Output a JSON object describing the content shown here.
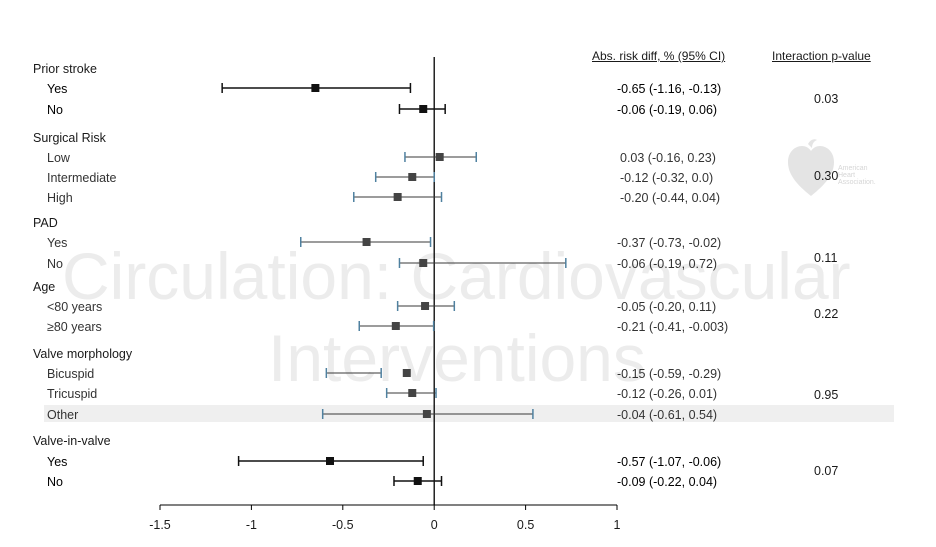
{
  "headers": {
    "abs_risk": "Abs. risk diff, % (95% CI)",
    "interaction": "Interaction p-value"
  },
  "watermark": {
    "line1": "Circulation: Cardiovascular",
    "line2": "Interventions",
    "logo_text": [
      "American",
      "Heart",
      "Association."
    ]
  },
  "colors": {
    "dark_marker": "#111111",
    "gray_marker": "#444444",
    "ci_dark": "#111111",
    "ci_blue": "#4f81a0",
    "highlight_band": "#efefef"
  },
  "chart_data": {
    "type": "forest",
    "xlim": [
      -1.5,
      1
    ],
    "xticks": [
      "-1.5",
      "-1",
      "-0.5",
      "0",
      "0.5",
      "1"
    ],
    "groups": [
      {
        "label": "Prior stroke",
        "p_value": "0.03",
        "rows": [
          {
            "label": "Yes",
            "est": -0.65,
            "lo": -1.16,
            "hi": -0.13,
            "text": "-0.65 (-1.16, -0.13)",
            "emphasis": true
          },
          {
            "label": "No",
            "est": -0.06,
            "lo": -0.19,
            "hi": 0.06,
            "text": "-0.06 (-0.19, 0.06)",
            "emphasis": true
          }
        ]
      },
      {
        "label": "Surgical Risk",
        "p_value": "0.30",
        "rows": [
          {
            "label": "Low",
            "est": 0.03,
            "lo": -0.16,
            "hi": 0.23,
            "text": "0.03 (-0.16, 0.23)",
            "emphasis": false
          },
          {
            "label": "Intermediate",
            "est": -0.12,
            "lo": -0.32,
            "hi": 0.0,
            "text": "-0.12 (-0.32, 0.0)",
            "emphasis": false
          },
          {
            "label": "High",
            "est": -0.2,
            "lo": -0.44,
            "hi": 0.04,
            "text": "-0.20 (-0.44, 0.04)",
            "emphasis": false
          }
        ]
      },
      {
        "label": "PAD",
        "p_value": "0.11",
        "rows": [
          {
            "label": "Yes",
            "est": -0.37,
            "lo": -0.73,
            "hi": -0.02,
            "text": "-0.37 (-0.73, -0.02)",
            "emphasis": false
          },
          {
            "label": "No",
            "est": -0.06,
            "lo": -0.19,
            "hi": 0.72,
            "text": "-0.06 (-0.19, 0.72)",
            "emphasis": false
          }
        ]
      },
      {
        "label": "Age",
        "p_value": "0.22",
        "rows": [
          {
            "label": "<80 years",
            "est": -0.05,
            "lo": -0.2,
            "hi": 0.11,
            "text": "-0.05 (-0.20, 0.11)",
            "emphasis": false
          },
          {
            "label": "≥80 years",
            "est": -0.21,
            "lo": -0.41,
            "hi": -0.003,
            "text": "-0.21 (-0.41, -0.003)",
            "emphasis": false
          }
        ]
      },
      {
        "label": "Valve morphology",
        "p_value": "0.95",
        "rows": [
          {
            "label": "Bicuspid",
            "est": -0.15,
            "lo": -0.59,
            "hi": -0.29,
            "text": "-0.15 (-0.59, -0.29)",
            "emphasis": false
          },
          {
            "label": "Tricuspid",
            "est": -0.12,
            "lo": -0.26,
            "hi": 0.01,
            "text": "-0.12 (-0.26, 0.01)",
            "emphasis": false
          },
          {
            "label": "Other",
            "est": -0.04,
            "lo": -0.61,
            "hi": 0.54,
            "text": "-0.04 (-0.61, 0.54)",
            "emphasis": false,
            "highlight": true
          }
        ]
      },
      {
        "label": "Valve-in-valve",
        "p_value": "0.07",
        "rows": [
          {
            "label": "Yes",
            "est": -0.57,
            "lo": -1.07,
            "hi": -0.06,
            "text": "-0.57 (-1.07, -0.06)",
            "emphasis": true
          },
          {
            "label": "No",
            "est": -0.09,
            "lo": -0.22,
            "hi": 0.04,
            "text": "-0.09 (-0.22, 0.04)",
            "emphasis": true
          }
        ]
      }
    ]
  }
}
